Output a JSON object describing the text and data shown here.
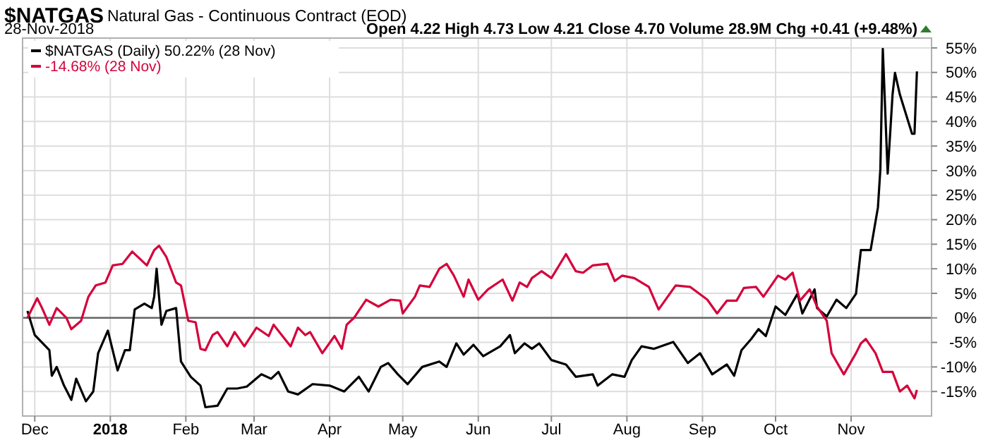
{
  "chart_data": {
    "type": "line",
    "title": "$NATGAS",
    "subtitle": "Natural Gas - Continuous Contract (EOD)",
    "annotations": [
      "28-Nov-2018",
      "Open 4.22 High 4.73 Low 4.21 Close 4.70 Volume 28.9M Chg +0.41 (+9.48%)"
    ],
    "xlim": [
      "2017-11-26",
      "2018-12-04"
    ],
    "ylim": [
      -20,
      57
    ],
    "xticks": [
      {
        "value": "2017-12-01",
        "label": "Dec"
      },
      {
        "value": "2018-01-01",
        "label": "2018"
      },
      {
        "value": "2018-02-01",
        "label": "Feb"
      },
      {
        "value": "2018-03-01",
        "label": "Mar"
      },
      {
        "value": "2018-04-01",
        "label": "Apr"
      },
      {
        "value": "2018-05-01",
        "label": "May"
      },
      {
        "value": "2018-06-01",
        "label": "Jun"
      },
      {
        "value": "2018-07-01",
        "label": "Jul"
      },
      {
        "value": "2018-08-01",
        "label": "Aug"
      },
      {
        "value": "2018-09-01",
        "label": "Sep"
      },
      {
        "value": "2018-10-01",
        "label": "Oct"
      },
      {
        "value": "2018-11-01",
        "label": "Nov"
      }
    ],
    "yticks": [
      {
        "value": -15,
        "label": "-15%"
      },
      {
        "value": -10,
        "label": "-10%"
      },
      {
        "value": -5,
        "label": "-5%"
      },
      {
        "value": 0,
        "label": "0%"
      },
      {
        "value": 5,
        "label": "5%"
      },
      {
        "value": 10,
        "label": "10%"
      },
      {
        "value": 15,
        "label": "15%"
      },
      {
        "value": 20,
        "label": "20%"
      },
      {
        "value": 25,
        "label": "25%"
      },
      {
        "value": 30,
        "label": "30%"
      },
      {
        "value": 35,
        "label": "35%"
      },
      {
        "value": 40,
        "label": "40%"
      },
      {
        "value": 45,
        "label": "45%"
      },
      {
        "value": 50,
        "label": "50%"
      },
      {
        "value": 55,
        "label": "55%"
      }
    ],
    "grid": true,
    "legend": "top left",
    "line_style": "solid",
    "marker": "none",
    "ref_lines": [
      {
        "axis": "y",
        "value": 0,
        "color": "#666666"
      }
    ],
    "series": [
      {
        "name": "$NATGAS (Daily) 50.22% (28 Nov)",
        "color": "#000000",
        "x": [
          "2017-11-28",
          "2017-12-01",
          "2017-12-07",
          "2017-12-08",
          "2017-12-10",
          "2017-12-13",
          "2017-12-16",
          "2017-12-18",
          "2017-12-22",
          "2017-12-25",
          "2017-12-27",
          "2017-12-31",
          "2018-01-04",
          "2018-01-07",
          "2018-01-09",
          "2018-01-11",
          "2018-01-15",
          "2018-01-18",
          "2018-01-19",
          "2018-01-20",
          "2018-01-22",
          "2018-01-24",
          "2018-01-28",
          "2018-01-30",
          "2018-02-03",
          "2018-02-07",
          "2018-02-09",
          "2018-02-14",
          "2018-02-18",
          "2018-02-22",
          "2018-02-26",
          "2018-03-04",
          "2018-03-08",
          "2018-03-11",
          "2018-03-15",
          "2018-03-19",
          "2018-03-25",
          "2018-04-01",
          "2018-04-07",
          "2018-04-13",
          "2018-04-17",
          "2018-04-22",
          "2018-04-25",
          "2018-04-29",
          "2018-05-03",
          "2018-05-09",
          "2018-05-16",
          "2018-05-19",
          "2018-05-23",
          "2018-05-26",
          "2018-05-30",
          "2018-06-03",
          "2018-06-10",
          "2018-06-14",
          "2018-06-16",
          "2018-06-20",
          "2018-06-23",
          "2018-06-26",
          "2018-07-01",
          "2018-07-07",
          "2018-07-11",
          "2018-07-18",
          "2018-07-20",
          "2018-07-26",
          "2018-07-31",
          "2018-08-03",
          "2018-08-07",
          "2018-08-12",
          "2018-08-20",
          "2018-08-26",
          "2018-08-31",
          "2018-09-05",
          "2018-09-11",
          "2018-09-14",
          "2018-09-17",
          "2018-09-21",
          "2018-09-24",
          "2018-09-27",
          "2018-10-01",
          "2018-10-05",
          "2018-10-10",
          "2018-10-12",
          "2018-10-17",
          "2018-10-18",
          "2018-10-22",
          "2018-10-26",
          "2018-10-30",
          "2018-11-03",
          "2018-11-05",
          "2018-11-09",
          "2018-11-11",
          "2018-11-12",
          "2018-11-13",
          "2018-11-14",
          "2018-11-16",
          "2018-11-18",
          "2018-11-19",
          "2018-11-21",
          "2018-11-26",
          "2018-11-27",
          "2018-11-28"
        ],
        "values": [
          1.4,
          -3.5,
          -6.6,
          -11.8,
          -10,
          -13.8,
          -16.7,
          -12.4,
          -17,
          -15,
          -7.2,
          -2.6,
          -10.7,
          -6.6,
          -6.6,
          1.7,
          2.9,
          2,
          4.3,
          10,
          -1.4,
          1.4,
          2,
          -8.9,
          -12,
          -13.8,
          -18.2,
          -17.9,
          -14.4,
          -14.4,
          -14,
          -11.5,
          -12.4,
          -11,
          -15,
          -15.6,
          -13.5,
          -13.8,
          -15,
          -12,
          -15,
          -10,
          -9.2,
          -11.5,
          -13.5,
          -10,
          -8.9,
          -10,
          -5.2,
          -7.5,
          -5.5,
          -7.8,
          -5.8,
          -3.5,
          -7.2,
          -5.2,
          -6.3,
          -5.2,
          -8.6,
          -9.5,
          -12,
          -11.5,
          -13.8,
          -11.5,
          -12,
          -8.6,
          -5.8,
          -6.3,
          -4.9,
          -9.2,
          -7.2,
          -11.5,
          -9.5,
          -11.8,
          -6.6,
          -4.3,
          -2.3,
          -3.7,
          2.3,
          0.6,
          4.9,
          0.9,
          5.8,
          2,
          0.3,
          3.7,
          2,
          4.9,
          13.8,
          13.8,
          19.6,
          22.5,
          30.3,
          54.8,
          29.4,
          45.5,
          49.9,
          45.5,
          37.5,
          37.5,
          50.22
        ]
      },
      {
        "name": "-14.68% (28 Nov)",
        "color": "#d5003b",
        "x": [
          "2017-11-28",
          "2017-12-02",
          "2017-12-04",
          "2017-12-07",
          "2017-12-10",
          "2017-12-14",
          "2017-12-16",
          "2017-12-20",
          "2017-12-23",
          "2017-12-26",
          "2017-12-30",
          "2018-01-02",
          "2018-01-06",
          "2018-01-10",
          "2018-01-13",
          "2018-01-16",
          "2018-01-19",
          "2018-01-21",
          "2018-01-24",
          "2018-01-28",
          "2018-01-30",
          "2018-02-02",
          "2018-02-05",
          "2018-02-07",
          "2018-02-09",
          "2018-02-12",
          "2018-02-14",
          "2018-02-18",
          "2018-02-21",
          "2018-02-25",
          "2018-03-02",
          "2018-03-07",
          "2018-03-09",
          "2018-03-16",
          "2018-03-19",
          "2018-03-22",
          "2018-03-24",
          "2018-03-29",
          "2018-04-03",
          "2018-04-06",
          "2018-04-08",
          "2018-04-11",
          "2018-04-16",
          "2018-04-21",
          "2018-04-26",
          "2018-04-30",
          "2018-05-01",
          "2018-05-06",
          "2018-05-08",
          "2018-05-12",
          "2018-05-16",
          "2018-05-19",
          "2018-05-22",
          "2018-05-26",
          "2018-05-28",
          "2018-06-01",
          "2018-06-05",
          "2018-06-11",
          "2018-06-15",
          "2018-06-18",
          "2018-06-21",
          "2018-06-23",
          "2018-06-27",
          "2018-07-01",
          "2018-07-07",
          "2018-07-11",
          "2018-07-14",
          "2018-07-18",
          "2018-07-24",
          "2018-07-27",
          "2018-07-30",
          "2018-08-04",
          "2018-08-10",
          "2018-08-14",
          "2018-08-21",
          "2018-08-27",
          "2018-09-03",
          "2018-09-07",
          "2018-09-11",
          "2018-09-15",
          "2018-09-18",
          "2018-09-23",
          "2018-09-26",
          "2018-10-02",
          "2018-10-05",
          "2018-10-08",
          "2018-10-11",
          "2018-10-15",
          "2018-10-18",
          "2018-10-22",
          "2018-10-24",
          "2018-10-29",
          "2018-11-03",
          "2018-11-05",
          "2018-11-07",
          "2018-11-11",
          "2018-11-14",
          "2018-11-18",
          "2018-11-21",
          "2018-11-24",
          "2018-11-27",
          "2018-11-28"
        ],
        "values": [
          0,
          4,
          2,
          -1.4,
          2,
          0,
          -2.3,
          -0.6,
          4.3,
          6.6,
          7.2,
          10.7,
          11,
          13.5,
          12.1,
          10.7,
          13.8,
          14.7,
          12.4,
          7.2,
          6.6,
          -0.6,
          -0.9,
          -6.3,
          -6.6,
          -3.5,
          -2.9,
          -5.8,
          -2.9,
          -5.8,
          -2,
          -3.7,
          -1.4,
          -5.8,
          -2,
          -3.5,
          -2.9,
          -7.2,
          -3.7,
          -6.3,
          -1.4,
          0,
          3.7,
          2.3,
          3.7,
          3.5,
          0.9,
          4.3,
          6.6,
          6.3,
          10,
          11,
          8.6,
          4.3,
          7.8,
          3.7,
          5.8,
          7.8,
          3.5,
          7.2,
          6.3,
          8.1,
          9.5,
          8.1,
          13,
          9.5,
          9.2,
          10.7,
          11,
          7.5,
          8.6,
          8.1,
          6.3,
          1.7,
          6.6,
          6.3,
          3.7,
          0.9,
          3.5,
          3.5,
          6.1,
          6.3,
          4.3,
          8.6,
          7.8,
          9.2,
          3.5,
          5.8,
          2.3,
          -0.6,
          -7.2,
          -11.5,
          -7.2,
          -5.2,
          -4.3,
          -7.2,
          -11,
          -11,
          -15,
          -13.8,
          -16.4,
          -14.68
        ]
      }
    ]
  }
}
